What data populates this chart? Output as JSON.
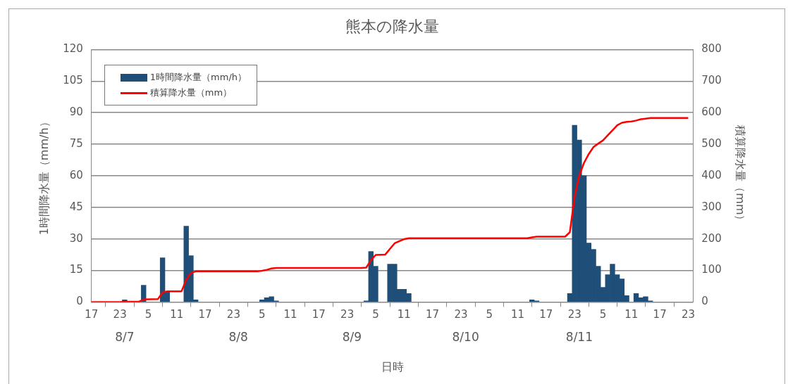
{
  "chart_data": {
    "type": "bar",
    "title": "熊本の降水量",
    "xlabel": "日時",
    "ylabel": "1時間降水量（mm/h）",
    "y2label": "積算降水量（mm）",
    "series": [
      {
        "name": "1時間降水量（mm/h）",
        "color": "#1f4e79",
        "x": [
          "--08-07T00:00",
          "--08-07T04:00",
          "--08-07T08:00",
          "--08-07T09:00",
          "--08-07T13:00",
          "--08-07T14:00",
          "--08-07T15:00",
          "--08-08T05:00",
          "--08-08T06:00",
          "--08-08T07:00",
          "--08-08T08:00",
          "--08-09T03:00",
          "--08-09T04:00",
          "--08-09T05:00",
          "--08-09T08:00",
          "--08-09T09:00",
          "--08-09T10:00",
          "--08-09T11:00",
          "--08-09T12:00",
          "--08-10T14:00",
          "--08-10T15:00",
          "--08-10T22:00",
          "--08-10T23:00",
          "--08-11T00:00",
          "--08-11T01:00",
          "--08-11T02:00",
          "--08-11T03:00",
          "--08-11T04:00",
          "--08-11T05:00",
          "--08-11T06:00",
          "--08-11T07:00",
          "--08-11T08:00",
          "--08-11T09:00",
          "--08-11T10:00",
          "--08-11T12:00",
          "--08-11T13:00",
          "--08-11T14:00",
          "--08-11T15:00"
        ],
        "values": [
          1,
          8,
          21,
          5,
          36,
          22,
          1,
          1,
          2,
          2.5,
          0.5,
          0.5,
          24,
          17,
          18,
          18,
          6,
          6,
          4,
          1,
          0.5,
          4,
          84,
          77,
          60,
          28,
          25,
          17,
          7,
          13,
          18,
          13,
          11,
          3,
          4,
          2,
          2.5,
          0.5
        ]
      },
      {
        "name": "積算降水量（mm）",
        "type": "line",
        "axis": "y2",
        "color": "#ff0000",
        "x": [
          "--08-06T17:00",
          "--08-06T23:00",
          "--08-07T00:00",
          "--08-07T03:00",
          "--08-07T04:00",
          "--08-07T07:00",
          "--08-07T08:00",
          "--08-07T09:00",
          "--08-07T12:00",
          "--08-07T13:00",
          "--08-07T14:00",
          "--08-07T15:00",
          "--08-08T04:00",
          "--08-08T05:00",
          "--08-08T06:00",
          "--08-08T07:00",
          "--08-08T08:00",
          "--08-09T02:00",
          "--08-09T03:00",
          "--08-09T04:00",
          "--08-09T05:00",
          "--08-09T07:00",
          "--08-09T08:00",
          "--08-09T09:00",
          "--08-09T10:00",
          "--08-09T11:00",
          "--08-09T12:00",
          "--08-10T13:00",
          "--08-10T14:00",
          "--08-10T15:00",
          "--08-10T21:00",
          "--08-10T22:00",
          "--08-10T23:00",
          "--08-11T00:00",
          "--08-11T01:00",
          "--08-11T02:00",
          "--08-11T03:00",
          "--08-11T04:00",
          "--08-11T05:00",
          "--08-11T06:00",
          "--08-11T07:00",
          "--08-11T08:00",
          "--08-11T09:00",
          "--08-11T10:00",
          "--08-11T11:00",
          "--08-11T12:00",
          "--08-11T13:00",
          "--08-11T14:00",
          "--08-11T15:00",
          "--08-11T23:00"
        ],
        "values": [
          0,
          0,
          1,
          1,
          8,
          9,
          30,
          34,
          34,
          70,
          92,
          97,
          97,
          99,
          102,
          106,
          108,
          108,
          109,
          132,
          149,
          150,
          168,
          186,
          193,
          199,
          202,
          202,
          205,
          207,
          207,
          221,
          333,
          401,
          441,
          469,
          491,
          502,
          512,
          528,
          544,
          560,
          568,
          571,
          572,
          575,
          579,
          581,
          583,
          583
        ]
      }
    ],
    "xlim": [
      "--08-06T17:00",
      "--08-12T00:00"
    ],
    "xticks": [
      {
        "value": "--08-06T17:00",
        "label": "17"
      },
      {
        "value": "--08-06T23:00",
        "label": "23"
      },
      {
        "value": "--08-07T05:00",
        "label": "5"
      },
      {
        "value": "--08-07T11:00",
        "label": "11"
      },
      {
        "value": "--08-07T17:00",
        "label": "17"
      },
      {
        "value": "--08-07T23:00",
        "label": "23"
      },
      {
        "value": "--08-08T05:00",
        "label": "5"
      },
      {
        "value": "--08-08T11:00",
        "label": "11"
      },
      {
        "value": "--08-08T17:00",
        "label": "17"
      },
      {
        "value": "--08-08T23:00",
        "label": "23"
      },
      {
        "value": "--08-09T05:00",
        "label": "5"
      },
      {
        "value": "--08-09T11:00",
        "label": "11"
      },
      {
        "value": "--08-09T17:00",
        "label": "17"
      },
      {
        "value": "--08-09T23:00",
        "label": "23"
      },
      {
        "value": "--08-10T05:00",
        "label": "5"
      },
      {
        "value": "--08-10T11:00",
        "label": "11"
      },
      {
        "value": "--08-10T17:00",
        "label": "17"
      },
      {
        "value": "--08-10T23:00",
        "label": "23"
      },
      {
        "value": "--08-11T05:00",
        "label": "5"
      },
      {
        "value": "--08-11T11:00",
        "label": "11"
      },
      {
        "value": "--08-11T17:00",
        "label": "17"
      },
      {
        "value": "--08-11T23:00",
        "label": "23"
      }
    ],
    "x2lim": [
      "--08-06T17:00",
      "--08-12T00:00"
    ],
    "x2ticks": [
      {
        "value": "--08-07",
        "label": "8/7"
      },
      {
        "value": "--08-08",
        "label": "8/8"
      },
      {
        "value": "--08-09",
        "label": "8/9"
      },
      {
        "value": "--08-10",
        "label": "8/10"
      },
      {
        "value": "--08-11",
        "label": "8/11"
      }
    ],
    "ylim": [
      0,
      120
    ],
    "yticks": [
      0,
      15,
      30,
      45,
      60,
      75,
      90,
      105,
      120
    ],
    "y2lim": [
      0,
      800
    ],
    "y2ticks": [
      0,
      100,
      200,
      300,
      400,
      500,
      600,
      700,
      800
    ],
    "grid": "y",
    "legend": "top left",
    "marker": "none",
    "line_style": "solid"
  }
}
